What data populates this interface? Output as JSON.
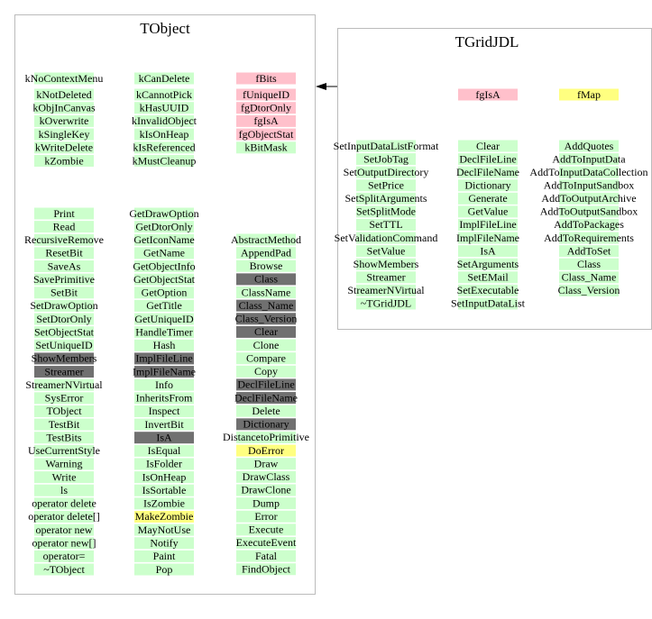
{
  "classes": [
    {
      "title": "TObject",
      "members": [
        {
          "color": "#ccffcc",
          "items": [
            "kNoContextMenu",
            "kNotDeleted",
            "kObjInCanvas",
            "kOverwrite",
            "kSingleKey",
            "kWriteDelete",
            "kZombie"
          ]
        },
        {
          "color": "#ccffcc",
          "items": [
            "kCanDelete",
            "kCannotPick",
            "kHasUUID",
            "kInvalidObject",
            "kIsOnHeap",
            "kIsReferenced",
            "kMustCleanup"
          ]
        },
        {
          "color": "#ffc0cb",
          "items": [
            "fBits",
            "fUniqueID",
            "fgDtorOnly",
            "fgIsA",
            "fgObjectStat",
            "kBitMask"
          ],
          "marked": {
            "5": "#ccffcc"
          }
        }
      ],
      "methods": [
        {
          "color": "#ccffcc",
          "items": [
            "Print",
            "Read",
            "RecursiveRemove",
            "ResetBit",
            "SaveAs",
            "SavePrimitive",
            "SetBit",
            "SetDrawOption",
            "SetDtorOnly",
            "SetObjectStat",
            "SetUniqueID",
            "ShowMembers",
            "Streamer",
            "StreamerNVirtual",
            "SysError",
            "TObject",
            "TestBit",
            "TestBits",
            "UseCurrentStyle",
            "Warning",
            "Write",
            "ls",
            "operator delete",
            "operator delete[]",
            "operator new",
            "operator new[]",
            "operator=",
            "~TObject"
          ],
          "marked": {
            "11": "#707070",
            "12": "#707070"
          }
        },
        {
          "color": "#ccffcc",
          "items": [
            "GetDrawOption",
            "GetDtorOnly",
            "GetIconName",
            "GetName",
            "GetObjectInfo",
            "GetObjectStat",
            "GetOption",
            "GetTitle",
            "GetUniqueID",
            "HandleTimer",
            "Hash",
            "ImplFileLine",
            "ImplFileName",
            "Info",
            "InheritsFrom",
            "Inspect",
            "InvertBit",
            "IsA",
            "IsEqual",
            "IsFolder",
            "IsOnHeap",
            "IsSortable",
            "IsZombie",
            "MakeZombie",
            "MayNotUse",
            "Notify",
            "Paint",
            "Pop"
          ],
          "marked": {
            "11": "#707070",
            "12": "#707070",
            "17": "#707070",
            "23": "#ffff80"
          }
        },
        {
          "color": "#ccffcc",
          "items": [
            "AbstractMethod",
            "AppendPad",
            "Browse",
            "Class",
            "ClassName",
            "Class_Name",
            "Class_Version",
            "Clear",
            "Clone",
            "Compare",
            "Copy",
            "DeclFileLine",
            "DeclFileName",
            "Delete",
            "Dictionary",
            "DistancetoPrimitive",
            "DoError",
            "Draw",
            "DrawClass",
            "DrawClone",
            "Dump",
            "Error",
            "Execute",
            "ExecuteEvent",
            "Fatal",
            "FindObject"
          ],
          "marked": {
            "3": "#707070",
            "5": "#707070",
            "6": "#707070",
            "7": "#707070",
            "11": "#707070",
            "12": "#707070",
            "14": "#707070",
            "16": "#ffff80"
          }
        }
      ]
    },
    {
      "title": "TGridJDL",
      "members": [
        {
          "color": "#ffc0cb",
          "items": [
            "fgIsA"
          ]
        },
        {
          "color": "#ffff80",
          "items": [
            "fMap"
          ]
        }
      ],
      "methods": [
        {
          "color": "#ccffcc",
          "items": [
            "SetInputDataListFormat",
            "SetJobTag",
            "SetOutputDirectory",
            "SetPrice",
            "SetSplitArguments",
            "SetSplitMode",
            "SetTTL",
            "SetValidationCommand",
            "SetValue",
            "ShowMembers",
            "Streamer",
            "StreamerNVirtual",
            "~TGridJDL"
          ]
        },
        {
          "color": "#ccffcc",
          "items": [
            "Clear",
            "DeclFileLine",
            "DeclFileName",
            "Dictionary",
            "Generate",
            "GetValue",
            "ImplFileLine",
            "ImplFileName",
            "IsA",
            "SetArguments",
            "SetEMail",
            "SetExecutable",
            "SetInputDataList"
          ]
        },
        {
          "color": "#ccffcc",
          "items": [
            "AddQuotes",
            "AddToInputData",
            "AddToInputDataCollection",
            "AddToInputSandbox",
            "AddToOutputArchive",
            "AddToOutputSandbox",
            "AddToPackages",
            "AddToRequirements",
            "AddToSet",
            "Class",
            "Class_Name",
            "Class_Version"
          ]
        }
      ]
    }
  ]
}
